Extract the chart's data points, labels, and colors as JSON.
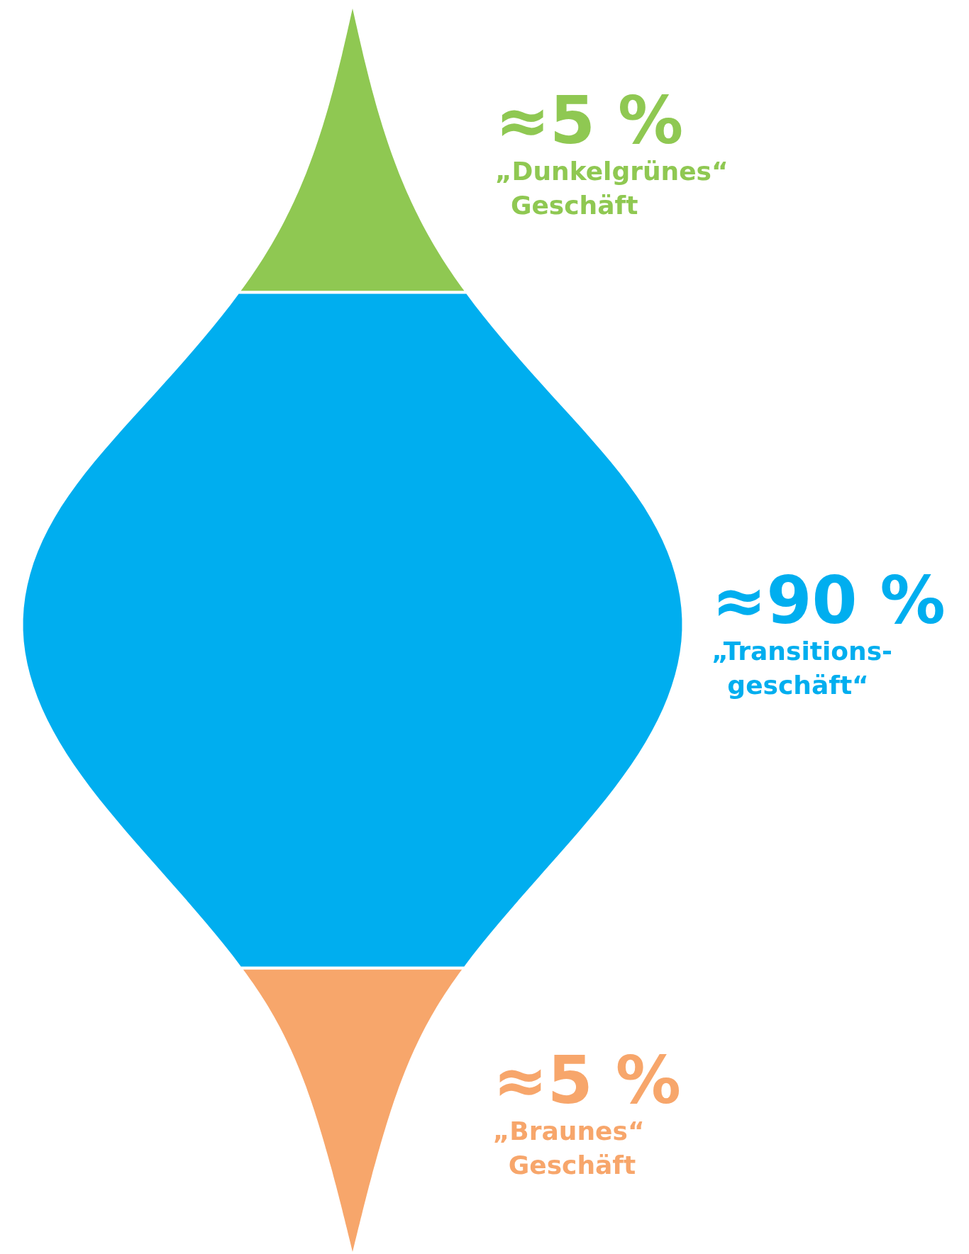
{
  "chart_data": {
    "type": "other",
    "categories": [
      "„Dunkelgrünes“\nGeschäft",
      "„Transitions-\ngeschäft“",
      "„Braunes“\nGeschäft"
    ],
    "values": [
      5,
      90,
      5
    ],
    "colors": [
      "#8fc852",
      "#00aeef",
      "#f7a66b"
    ],
    "value_labels": [
      "≈5 %",
      "≈90 %",
      "≈5 %"
    ]
  }
}
